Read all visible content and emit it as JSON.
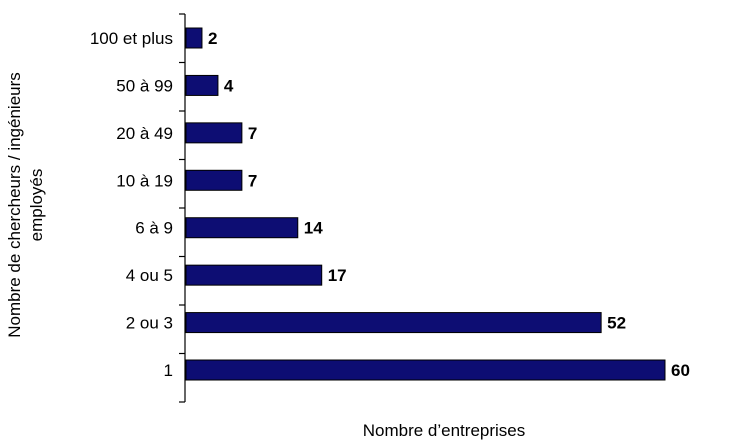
{
  "chart_data": {
    "type": "bar",
    "orientation": "horizontal",
    "categories": [
      "100 et plus",
      "50 à 99",
      "20 à 49",
      "10 à 19",
      "6 à 9",
      "4 ou 5",
      "2 ou 3",
      "1"
    ],
    "values": [
      2,
      4,
      7,
      7,
      14,
      17,
      52,
      60
    ],
    "title": "",
    "xlabel": "Nombre d’entreprises",
    "ylabel_lines": [
      "Nombre de chercheurs / ingénieurs",
      "employés"
    ],
    "xlim": [
      0,
      60
    ],
    "grid": false,
    "legend": "none",
    "bar_color": "#0d0d73",
    "data_labels": true
  }
}
